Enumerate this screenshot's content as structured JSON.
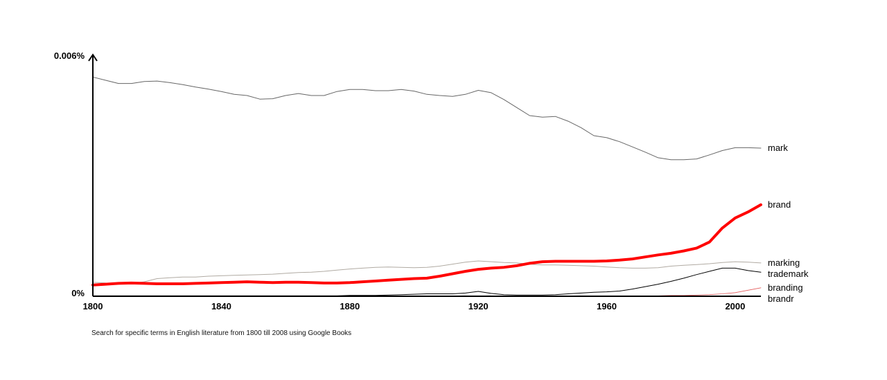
{
  "caption": "Search for specific terms in English literature from 1800 till 2008 using Google Books",
  "chart_data": {
    "type": "line",
    "title": "",
    "xlabel": "",
    "ylabel": "",
    "xlim": [
      1800,
      2008
    ],
    "ylim": [
      0,
      0.006
    ],
    "grid": false,
    "legend": "inline-right-end",
    "x_ticks": [
      1800,
      1840,
      1880,
      1920,
      1960,
      2000
    ],
    "x_tick_labels": [
      "1800",
      "1840",
      "1880",
      "1920",
      "1960",
      "2000"
    ],
    "y_ticks": [
      0,
      0.006
    ],
    "y_tick_labels": [
      "0%",
      "0.006%"
    ],
    "x": [
      1800,
      1804,
      1808,
      1812,
      1816,
      1820,
      1824,
      1828,
      1832,
      1836,
      1840,
      1844,
      1848,
      1852,
      1856,
      1860,
      1864,
      1868,
      1872,
      1876,
      1880,
      1884,
      1888,
      1892,
      1896,
      1900,
      1904,
      1908,
      1912,
      1916,
      1920,
      1924,
      1928,
      1932,
      1936,
      1940,
      1944,
      1948,
      1952,
      1956,
      1960,
      1964,
      1968,
      1972,
      1976,
      1980,
      1984,
      1988,
      1992,
      1996,
      2000,
      2004,
      2008
    ],
    "series": [
      {
        "name": "mark",
        "color": "#666666",
        "width": 1,
        "values": [
          0.00546,
          0.00538,
          0.0053,
          0.0053,
          0.00535,
          0.00536,
          0.00532,
          0.00527,
          0.00521,
          0.00516,
          0.0051,
          0.00503,
          0.005,
          0.00491,
          0.00492,
          0.005,
          0.00505,
          0.005,
          0.005,
          0.0051,
          0.00515,
          0.00515,
          0.00512,
          0.00512,
          0.00515,
          0.00511,
          0.00503,
          0.005,
          0.00498,
          0.00503,
          0.00513,
          0.00507,
          0.0049,
          0.0047,
          0.0045,
          0.00446,
          0.00448,
          0.00436,
          0.0042,
          0.004,
          0.00395,
          0.00385,
          0.00372,
          0.00359,
          0.00345,
          0.0034,
          0.0034,
          0.00342,
          0.00352,
          0.00363,
          0.0037,
          0.0037,
          0.00369
        ]
      },
      {
        "name": "brand",
        "color": "#ff0000",
        "width": 4,
        "values": [
          0.00028,
          0.0003,
          0.00032,
          0.00033,
          0.00032,
          0.00031,
          0.00031,
          0.00031,
          0.00032,
          0.00033,
          0.00034,
          0.00035,
          0.00036,
          0.00035,
          0.00034,
          0.00035,
          0.00035,
          0.00034,
          0.00033,
          0.00033,
          0.00034,
          0.00036,
          0.00038,
          0.0004,
          0.00042,
          0.00044,
          0.00045,
          0.0005,
          0.00056,
          0.00062,
          0.00067,
          0.0007,
          0.00072,
          0.00076,
          0.00082,
          0.00086,
          0.00087,
          0.00087,
          0.00087,
          0.00087,
          0.00088,
          0.0009,
          0.00093,
          0.00098,
          0.00103,
          0.00107,
          0.00113,
          0.0012,
          0.00135,
          0.0017,
          0.00195,
          0.0021,
          0.00228
        ]
      },
      {
        "name": "marking",
        "color": "#b0aaa2",
        "width": 1,
        "values": [
          0.00035,
          0.00033,
          0.00032,
          0.00032,
          0.00036,
          0.00044,
          0.00046,
          0.00048,
          0.00048,
          0.0005,
          0.00051,
          0.00052,
          0.00053,
          0.00054,
          0.00055,
          0.00057,
          0.00059,
          0.0006,
          0.00062,
          0.00065,
          0.00068,
          0.0007,
          0.00072,
          0.00073,
          0.00072,
          0.00071,
          0.00072,
          0.00075,
          0.0008,
          0.00085,
          0.00088,
          0.00086,
          0.00084,
          0.00083,
          0.0008,
          0.00078,
          0.00078,
          0.00077,
          0.00076,
          0.00075,
          0.00073,
          0.00071,
          0.0007,
          0.0007,
          0.00071,
          0.00075,
          0.00077,
          0.00079,
          0.00081,
          0.00084,
          0.00086,
          0.00085,
          0.00083
        ]
      },
      {
        "name": "trademark",
        "color": "#000000",
        "width": 1,
        "values": [
          1e-05,
          1e-05,
          1e-05,
          1e-05,
          1e-05,
          1e-05,
          1e-05,
          1e-05,
          1e-05,
          1e-05,
          1e-05,
          1e-05,
          1e-05,
          1e-05,
          1e-05,
          1e-05,
          1e-05,
          1e-05,
          1e-05,
          1e-05,
          2e-05,
          2e-05,
          2e-05,
          3e-05,
          4e-05,
          5e-05,
          6e-05,
          6e-05,
          6e-05,
          8e-05,
          0.00012,
          7e-05,
          4e-05,
          3e-05,
          3e-05,
          3e-05,
          4e-05,
          6e-05,
          8e-05,
          0.0001,
          0.00011,
          0.00013,
          0.00018,
          0.00024,
          0.0003,
          0.00037,
          0.00045,
          0.00054,
          0.00062,
          0.0007,
          0.0007,
          0.00064,
          0.0006
        ]
      },
      {
        "name": "branding",
        "color": "#e35a5a",
        "width": 0.8,
        "values": [
          1e-05,
          1e-05,
          1e-05,
          1e-05,
          1e-05,
          1e-05,
          1e-05,
          1e-05,
          1e-05,
          1e-05,
          1e-05,
          1e-05,
          1e-05,
          1e-05,
          1e-05,
          1e-05,
          1e-05,
          1e-05,
          1e-05,
          1e-05,
          1e-05,
          1e-05,
          1e-05,
          1e-05,
          1e-05,
          1e-05,
          1e-05,
          1e-05,
          1e-05,
          1e-05,
          1e-05,
          1e-05,
          1e-05,
          1e-05,
          1e-05,
          1e-05,
          1e-05,
          1e-05,
          1e-05,
          1e-05,
          1e-05,
          1e-05,
          1e-05,
          1e-05,
          1e-05,
          2e-05,
          2e-05,
          3e-05,
          4e-05,
          6e-05,
          9e-05,
          0.00015,
          0.00021
        ]
      },
      {
        "name": "brandr",
        "color": "#999999",
        "width": 0.8,
        "values": [
          1e-05,
          1e-05,
          1e-05,
          1e-05,
          1e-05,
          1e-05,
          1e-05,
          1e-05,
          1e-05,
          1e-05,
          1e-05,
          1e-05,
          1e-05,
          1e-05,
          1e-05,
          1e-05,
          1e-05,
          1e-05,
          1e-05,
          1e-05,
          1e-05,
          1e-05,
          1e-05,
          1e-05,
          1e-05,
          1e-05,
          1e-05,
          1e-05,
          1e-05,
          1e-05,
          1e-05,
          1e-05,
          1e-05,
          1e-05,
          1e-05,
          1e-05,
          1e-05,
          1e-05,
          1e-05,
          1e-05,
          1e-05,
          1e-05,
          1e-05,
          1e-05,
          1e-05,
          1e-05,
          1e-05,
          1e-05,
          1e-05,
          1e-05,
          1e-05,
          1e-05,
          1e-05
        ]
      }
    ]
  }
}
